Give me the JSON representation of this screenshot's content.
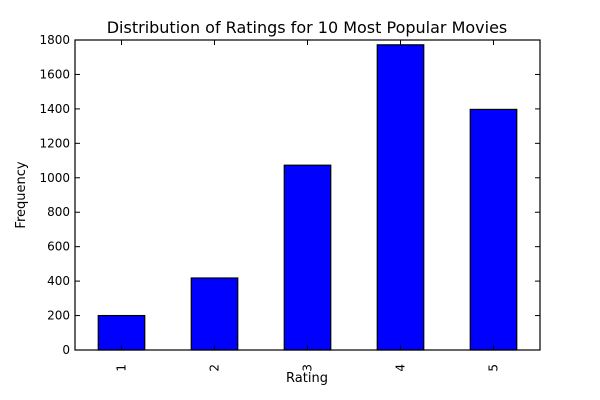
{
  "chart_data": {
    "type": "bar",
    "title": "Distribution of Ratings for 10 Most Popular Movies",
    "xlabel": "Rating",
    "ylabel": "Frequency",
    "categories": [
      "1",
      "2",
      "3",
      "4",
      "5"
    ],
    "values": [
      200,
      418,
      1073,
      1772,
      1397
    ],
    "ylim": [
      0,
      1800
    ],
    "yticks": [
      0,
      200,
      400,
      600,
      800,
      1000,
      1200,
      1400,
      1600,
      1800
    ],
    "bar_color": "#0000ff",
    "grid": false,
    "legend": "none"
  }
}
